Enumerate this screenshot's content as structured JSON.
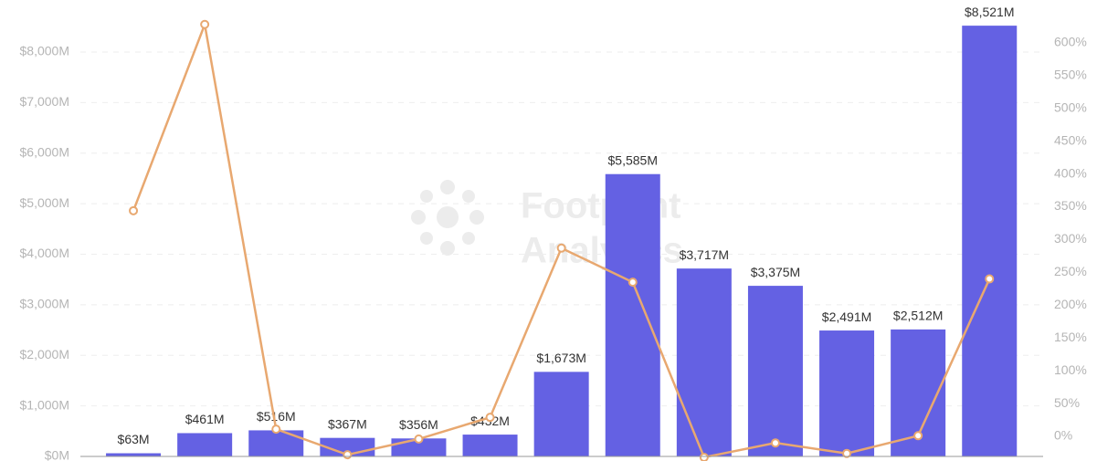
{
  "chart_data": {
    "type": "bar_line",
    "watermark": [
      "Footprint",
      "Analytics"
    ],
    "categories": [
      null,
      null,
      null,
      null,
      null,
      null,
      null,
      null,
      null,
      null,
      null,
      null,
      null
    ],
    "series": [
      {
        "type": "bar",
        "color": "#6461e3",
        "axis": "y",
        "values": [
          63,
          461,
          516,
          367,
          356,
          432,
          1673,
          5585,
          3717,
          3375,
          2491,
          2512,
          8521
        ],
        "value_labels": [
          "$63M",
          "$461M",
          "$516M",
          "$367M",
          "$356M",
          "$432M",
          "$1,673M",
          "$5,585M",
          "$3,717M",
          "$3,375M",
          "$2,491M",
          "$2,512M",
          "$8,521M"
        ]
      },
      {
        "type": "line",
        "color": "#e8a870",
        "axis": "y2",
        "values": [
          344,
          628,
          11,
          -28,
          -4,
          29,
          287,
          235,
          -32,
          -10,
          -26,
          1,
          240
        ]
      }
    ],
    "ylim": [
      0,
      9000
    ],
    "yticks": [
      {
        "value": 0,
        "label": "$0M"
      },
      {
        "value": 1000,
        "label": "$1,000M"
      },
      {
        "value": 2000,
        "label": "$2,000M"
      },
      {
        "value": 3000,
        "label": "$3,000M"
      },
      {
        "value": 4000,
        "label": "$4,000M"
      },
      {
        "value": 5000,
        "label": "$5,000M"
      },
      {
        "value": 6000,
        "label": "$6,000M"
      },
      {
        "value": 7000,
        "label": "$7,000M"
      },
      {
        "value": 8000,
        "label": "$8,000M"
      }
    ],
    "y2lim": [
      -30.6,
      663
    ],
    "y2ticks": [
      {
        "value": 0,
        "label": "0%"
      },
      {
        "value": 50,
        "label": "50%"
      },
      {
        "value": 100,
        "label": "100%"
      },
      {
        "value": 150,
        "label": "150%"
      },
      {
        "value": 200,
        "label": "200%"
      },
      {
        "value": 250,
        "label": "250%"
      },
      {
        "value": 300,
        "label": "300%"
      },
      {
        "value": 350,
        "label": "350%"
      },
      {
        "value": 400,
        "label": "400%"
      },
      {
        "value": 450,
        "label": "450%"
      },
      {
        "value": 500,
        "label": "500%"
      },
      {
        "value": 550,
        "label": "550%"
      },
      {
        "value": 600,
        "label": "600%"
      }
    ],
    "grid": true
  }
}
